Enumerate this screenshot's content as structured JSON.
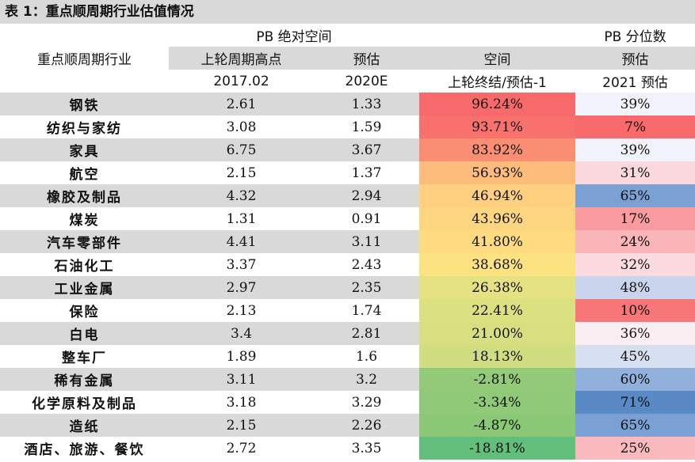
{
  "title": "表 1：重点顺周期行业估值情况",
  "header": {
    "pb_space": "PB 绝对空间",
    "pb_pct": "PB 分位数",
    "industry": "重点顺周期行业",
    "col_high": "上轮周期高点",
    "col_est": "预估",
    "col_space": "空间",
    "col_est2": "预估",
    "date_high": "2017.02",
    "date_est": "2020E",
    "space_desc": "上轮终结/预估-1",
    "pct_desc": "2021 预估"
  },
  "rows": [
    {
      "name": "钢铁",
      "high": "2.61",
      "est": "1.33",
      "space": "96.24%",
      "pct": "39%",
      "space_color": "#f8696b",
      "pct_color": "#f2f2fa"
    },
    {
      "name": "纺织与家纺",
      "high": "3.08",
      "est": "1.59",
      "space": "93.71%",
      "pct": "7%",
      "space_color": "#f8716c",
      "pct_color": "#f8696b"
    },
    {
      "name": "家具",
      "high": "6.75",
      "est": "3.67",
      "space": "83.92%",
      "pct": "39%",
      "space_color": "#fa8e72",
      "pct_color": "#f2f2fa"
    },
    {
      "name": "航空",
      "high": "2.15",
      "est": "1.37",
      "space": "56.93%",
      "pct": "31%",
      "space_color": "#fdbc7b",
      "pct_color": "#fbd8dd"
    },
    {
      "name": "橡胶及制品",
      "high": "4.32",
      "est": "2.94",
      "space": "46.94%",
      "pct": "65%",
      "space_color": "#fed07f",
      "pct_color": "#7ba0d4"
    },
    {
      "name": "煤炭",
      "high": "1.31",
      "est": "0.91",
      "space": "43.96%",
      "pct": "17%",
      "space_color": "#fed580",
      "pct_color": "#f99b9f"
    },
    {
      "name": "汽车零部件",
      "high": "4.41",
      "est": "3.11",
      "space": "41.80%",
      "pct": "24%",
      "space_color": "#fedb81",
      "pct_color": "#fab5b9"
    },
    {
      "name": "石油化工",
      "high": "3.37",
      "est": "2.43",
      "space": "38.68%",
      "pct": "32%",
      "space_color": "#fde282",
      "pct_color": "#fbdbe0"
    },
    {
      "name": "工业金属",
      "high": "2.97",
      "est": "2.35",
      "space": "26.38%",
      "pct": "48%",
      "space_color": "#e4e283",
      "pct_color": "#c8d5ec"
    },
    {
      "name": "保险",
      "high": "2.13",
      "est": "1.74",
      "space": "22.41%",
      "pct": "10%",
      "space_color": "#dbe081",
      "pct_color": "#f87578"
    },
    {
      "name": "白电",
      "high": "3.4",
      "est": "2.81",
      "space": "21.00%",
      "pct": "36%",
      "space_color": "#d8df81",
      "pct_color": "#fbeef2"
    },
    {
      "name": "整车厂",
      "high": "1.89",
      "est": "1.6",
      "space": "18.13%",
      "pct": "45%",
      "space_color": "#d0dd80",
      "pct_color": "#d7e0f0"
    },
    {
      "name": "稀有金属",
      "high": "3.11",
      "est": "3.2",
      "space": "-2.81%",
      "pct": "60%",
      "space_color": "#92ca77",
      "pct_color": "#91b0dc"
    },
    {
      "name": "化学原料及制品",
      "high": "3.18",
      "est": "3.29",
      "space": "-3.34%",
      "pct": "71%",
      "space_color": "#90c977",
      "pct_color": "#5a8ac6"
    },
    {
      "name": "造纸",
      "high": "2.15",
      "est": "2.26",
      "space": "-4.87%",
      "pct": "65%",
      "space_color": "#8bc876",
      "pct_color": "#7ba0d4"
    },
    {
      "name": "酒店、旅游、餐饮",
      "high": "2.72",
      "est": "3.35",
      "space": "-18.81%",
      "pct": "25%",
      "space_color": "#63be7b",
      "pct_color": "#fab9bd"
    }
  ]
}
